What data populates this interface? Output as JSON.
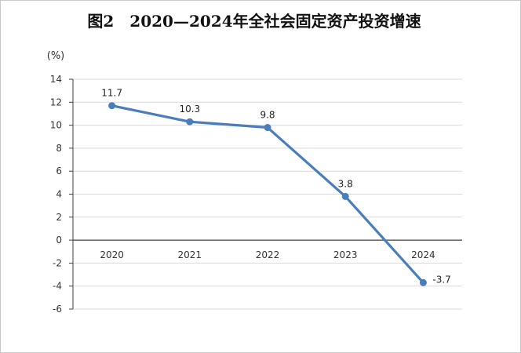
{
  "chart_data": {
    "type": "line",
    "title": "图2　2020—2024年全社会固定资产投资增速",
    "ylabel": "(%)",
    "xlabel": "",
    "categories": [
      "2020",
      "2021",
      "2022",
      "2023",
      "2024"
    ],
    "values": [
      11.7,
      10.3,
      9.8,
      3.8,
      -3.7
    ],
    "data_labels": [
      "11.7",
      "10.3",
      "9.8",
      "3.8",
      "-3.7"
    ],
    "ylim": [
      -6,
      14
    ],
    "yticks": [
      14,
      12,
      10,
      8,
      6,
      4,
      2,
      0,
      -2,
      -4,
      -6
    ],
    "grid": true,
    "legend": "none",
    "line_color": "#4A7EBB",
    "grid_color": "#D9D9D9",
    "axis_color": "#404040"
  }
}
